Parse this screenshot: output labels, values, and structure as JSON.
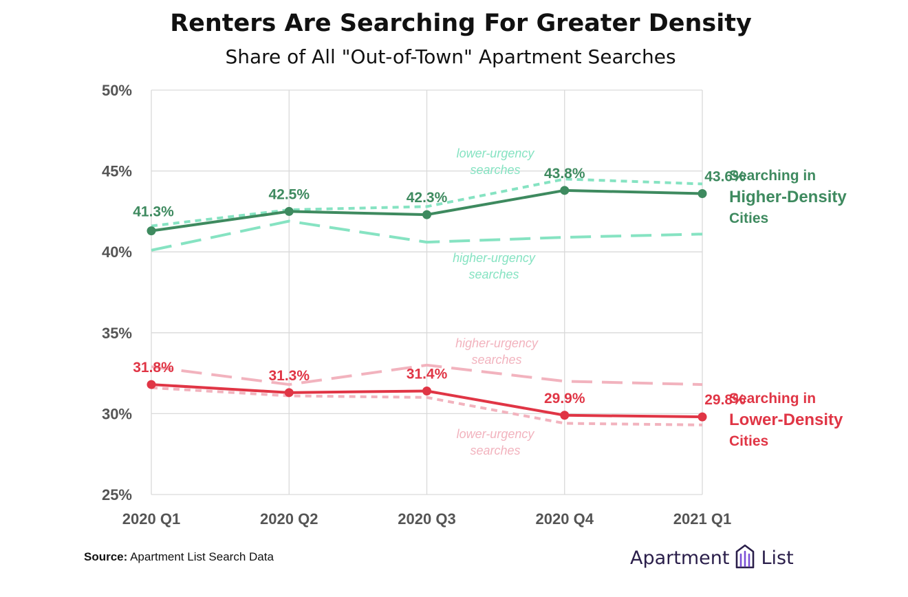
{
  "title": "Renters Are Searching For Greater Density",
  "subtitle": "Share of All \"Out-of-Town\" Apartment Searches",
  "source": {
    "label": "Source:",
    "text": "Apartment List Search Data"
  },
  "logo": {
    "word1": "Apartment",
    "word2": "List",
    "icon": "building-icon"
  },
  "colors": {
    "higher_main": "#3e8a5f",
    "higher_light": "#86e3c2",
    "lower_main": "#e03545",
    "lower_light": "#f2b3be",
    "grid": "#d9d9d9",
    "axis_text": "#555555"
  },
  "chart_data": {
    "type": "line",
    "title": "Renters Are Searching For Greater Density",
    "subtitle": "Share of All \"Out-of-Town\" Apartment Searches",
    "categories": [
      "2020 Q1",
      "2020 Q2",
      "2020 Q3",
      "2020 Q4",
      "2021 Q1"
    ],
    "ylim": [
      25,
      50
    ],
    "yticks": [
      "25%",
      "30%",
      "35%",
      "40%",
      "45%",
      "50%"
    ],
    "grid": true,
    "series": [
      {
        "key": "higher",
        "name": "Searching in Higher-Density Cities",
        "style": "solid",
        "color": "#3e8a5f",
        "values": [
          41.3,
          42.5,
          42.3,
          43.8,
          43.6
        ],
        "labels": [
          "41.3%",
          "42.5%",
          "42.3%",
          "43.8%",
          "43.6%"
        ]
      },
      {
        "key": "higher_low_urgency",
        "name": "lower-urgency searches",
        "style": "dotted",
        "color": "#86e3c2",
        "values": [
          41.6,
          42.6,
          42.8,
          44.5,
          44.2
        ]
      },
      {
        "key": "higher_high_urgency",
        "name": "higher-urgency searches",
        "style": "dashed",
        "color": "#86e3c2",
        "values": [
          40.1,
          41.9,
          40.6,
          40.9,
          41.1
        ]
      },
      {
        "key": "lower",
        "name": "Searching in Lower-Density Cities",
        "style": "solid",
        "color": "#e03545",
        "values": [
          31.8,
          31.3,
          31.4,
          29.9,
          29.8
        ],
        "labels": [
          "31.8%",
          "31.3%",
          "31.4%",
          "29.9%",
          "29.8%"
        ]
      },
      {
        "key": "lower_high_urgency",
        "name": "higher-urgency searches",
        "style": "dashed",
        "color": "#f2b3be",
        "values": [
          32.9,
          31.8,
          33.0,
          32.0,
          31.8
        ]
      },
      {
        "key": "lower_low_urgency",
        "name": "lower-urgency searches",
        "style": "dotted",
        "color": "#f2b3be",
        "values": [
          31.6,
          31.1,
          31.0,
          29.4,
          29.3
        ]
      }
    ],
    "annotations": {
      "higher_low_urgency": [
        "lower-urgency",
        "searches"
      ],
      "higher_high_urgency": [
        "higher-urgency",
        "searches"
      ],
      "lower_high_urgency": [
        "higher-urgency",
        "searches"
      ],
      "lower_low_urgency": [
        "lower-urgency",
        "searches"
      ]
    },
    "legend": {
      "higher": [
        "Searching in",
        "Higher-Density",
        "Cities"
      ],
      "lower": [
        "Searching in",
        "Lower-Density",
        "Cities"
      ]
    }
  }
}
